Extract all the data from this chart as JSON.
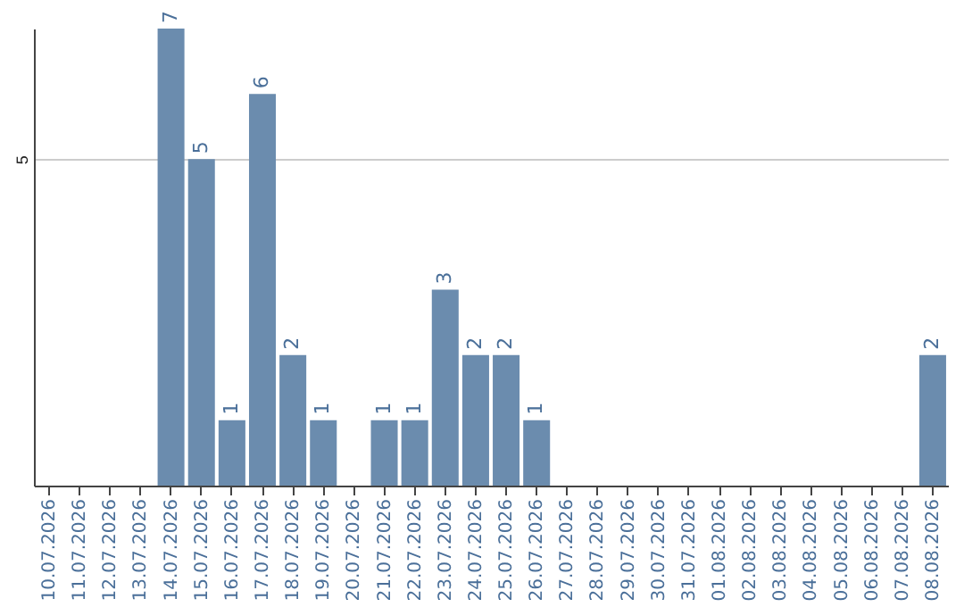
{
  "chart_data": {
    "type": "bar",
    "categories": [
      "10.07.2026",
      "11.07.2026",
      "12.07.2026",
      "13.07.2026",
      "14.07.2026",
      "15.07.2026",
      "16.07.2026",
      "17.07.2026",
      "18.07.2026",
      "19.07.2026",
      "20.07.2026",
      "21.07.2026",
      "22.07.2026",
      "23.07.2026",
      "24.07.2026",
      "25.07.2026",
      "26.07.2026",
      "27.07.2026",
      "28.07.2026",
      "29.07.2026",
      "30.07.2026",
      "31.07.2026",
      "01.08.2026",
      "02.08.2026",
      "03.08.2026",
      "04.08.2026",
      "05.08.2026",
      "06.08.2026",
      "07.08.2026",
      "08.08.2026"
    ],
    "values": [
      0,
      0,
      0,
      0,
      7,
      5,
      1,
      6,
      2,
      1,
      0,
      1,
      1,
      3,
      2,
      2,
      1,
      0,
      0,
      0,
      0,
      0,
      0,
      0,
      0,
      0,
      0,
      0,
      0,
      2
    ],
    "value_labels": [
      null,
      null,
      null,
      null,
      "7",
      "5",
      "1",
      "6",
      "2",
      "1",
      null,
      "1",
      "1",
      "3",
      "2",
      "2",
      "1",
      null,
      null,
      null,
      null,
      null,
      null,
      null,
      null,
      null,
      null,
      null,
      null,
      "2"
    ],
    "color": "#6b8cae",
    "ylim": [
      0,
      7
    ],
    "yticks": [
      5
    ],
    "grid": "y"
  }
}
